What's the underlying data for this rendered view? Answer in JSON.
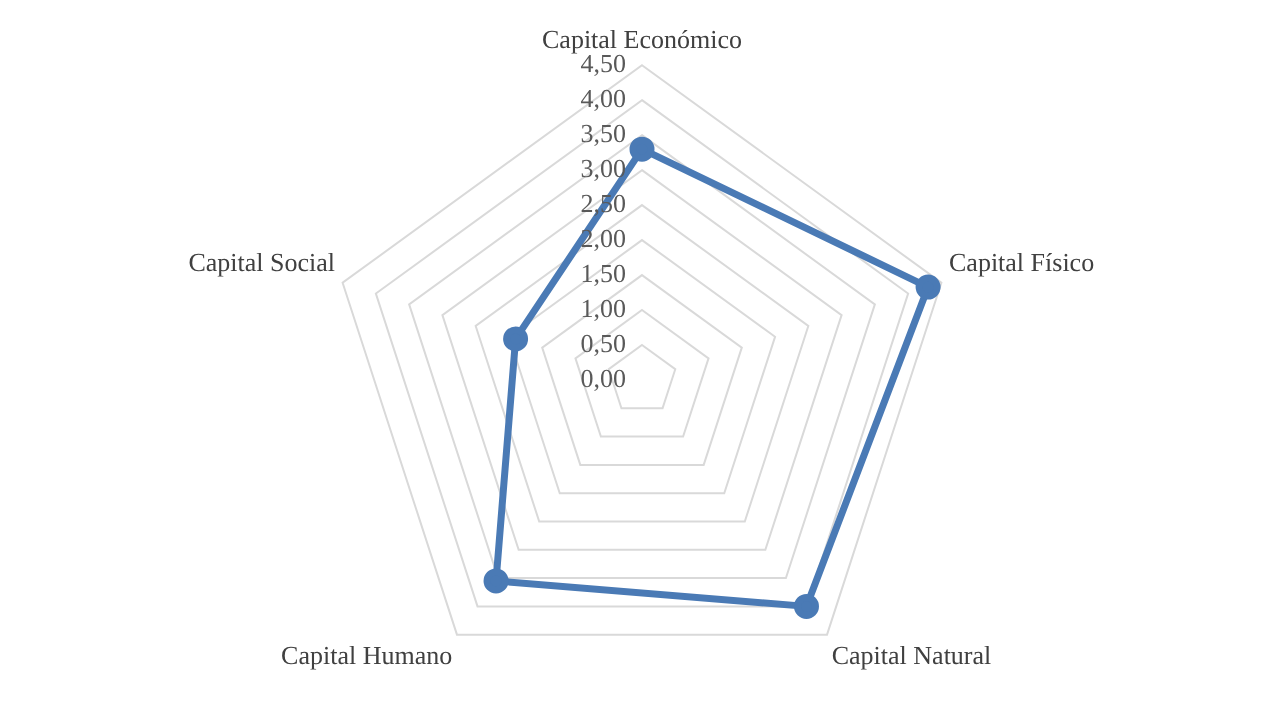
{
  "chart_data": {
    "type": "radar",
    "categories": [
      "Capital Económico",
      "Capital Físico",
      "Capital Natural",
      "Capital Humano",
      "Capital Social"
    ],
    "series": [
      {
        "color": "#4a7ab5",
        "values": [
          3.3,
          4.3,
          4.0,
          3.55,
          1.9
        ]
      }
    ],
    "ylim": [
      0,
      4.5
    ],
    "yticks": [
      {
        "value": 0,
        "label": "0,00"
      },
      {
        "value": 0.5,
        "label": "0,50"
      },
      {
        "value": 1,
        "label": "1,00"
      },
      {
        "value": 1.5,
        "label": "1,50"
      },
      {
        "value": 2,
        "label": "2,00"
      },
      {
        "value": 2.5,
        "label": "2,50"
      },
      {
        "value": 3,
        "label": "3,00"
      },
      {
        "value": 3.5,
        "label": "3,50"
      },
      {
        "value": 4,
        "label": "4,00"
      },
      {
        "value": 4.5,
        "label": "4,50"
      }
    ],
    "grid": true,
    "legend": false,
    "marker": "circle",
    "line_style": "solid"
  }
}
